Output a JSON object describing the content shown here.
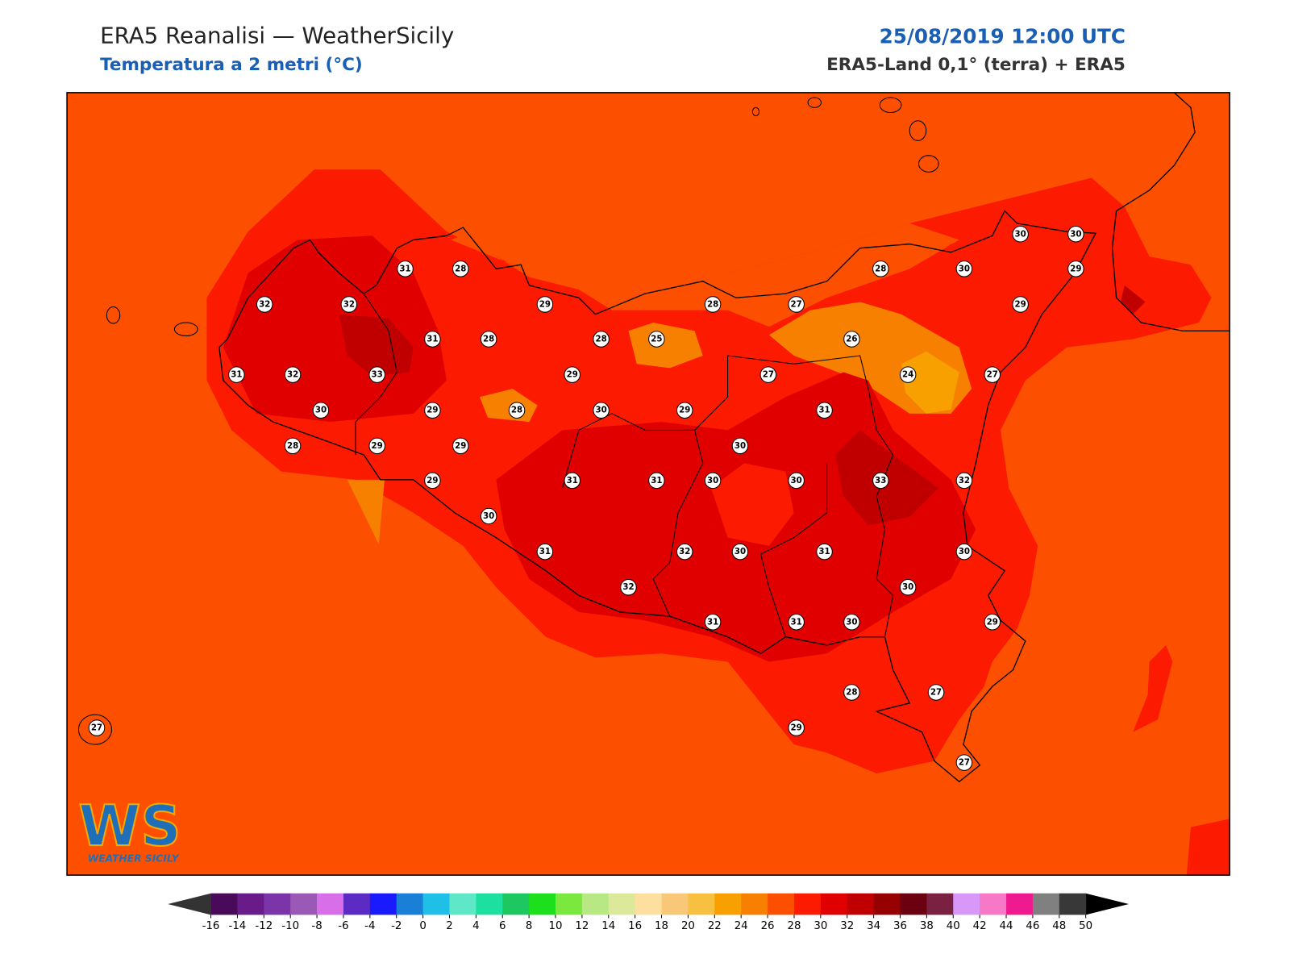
{
  "header": {
    "title": "ERA5 Reanalisi — WeatherSicily",
    "subtitle": "Temperatura a 2 metri (°C)",
    "datetime": "25/08/2019 12:00 UTC",
    "source": "ERA5-Land 0,1° (terra) + ERA5"
  },
  "stations": [
    31,
    28,
    32,
    32,
    29,
    28,
    27,
    28,
    30,
    30,
    30,
    29,
    29,
    31,
    28,
    28,
    25,
    26,
    31,
    32,
    33,
    29,
    27,
    24,
    27,
    30,
    29,
    28,
    30,
    29,
    31,
    28,
    29,
    29,
    30,
    29,
    31,
    31,
    30,
    30,
    33,
    32,
    30,
    31,
    32,
    30,
    31,
    30,
    32,
    30,
    31,
    31,
    30,
    29,
    28,
    27,
    27,
    29,
    27
  ],
  "logo": {
    "text": "WS",
    "caption": "WEATHER SICILY"
  },
  "colorbar": {
    "ticks": [
      -16,
      -14,
      -12,
      -10,
      -8,
      -6,
      -4,
      -2,
      0,
      2,
      4,
      6,
      8,
      10,
      12,
      14,
      16,
      18,
      20,
      22,
      24,
      26,
      28,
      30,
      32,
      34,
      36,
      38,
      40,
      42,
      44,
      46,
      48,
      50
    ],
    "colors": [
      "#4a0a5a",
      "#6a1b8a",
      "#7b35a8",
      "#9b59b6",
      "#d86fe8",
      "#5b2bc4",
      "#1a1aff",
      "#1a7fd6",
      "#1fc0e8",
      "#5ee8c8",
      "#1de0a0",
      "#1ec860",
      "#1de01d",
      "#7ae83c",
      "#b8e884",
      "#dce89a",
      "#fde0a0",
      "#f8c878",
      "#f8c040",
      "#f8a000",
      "#f88000",
      "#fc5000",
      "#fc1a00",
      "#e00000",
      "#c00000",
      "#960000",
      "#6a0010",
      "#7a2040",
      "#d898f8",
      "#f878c8",
      "#f01a90",
      "#808080",
      "#383838"
    ],
    "under_color": "#333333",
    "over_color": "#000000"
  }
}
